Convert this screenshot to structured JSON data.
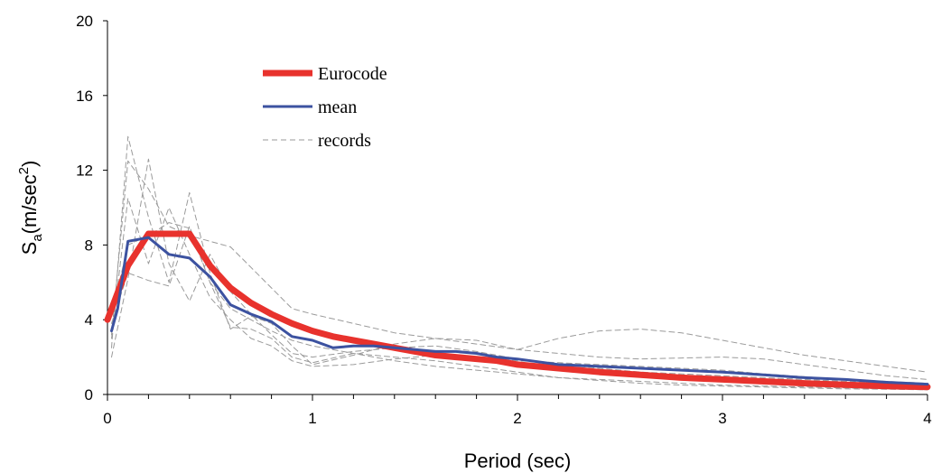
{
  "chart_data": {
    "type": "line",
    "title": "",
    "xlabel": "Period (sec)",
    "ylabel": {
      "main": "S",
      "sub": "a",
      "unit": "(m/sec",
      "sup": "2",
      "close": ")"
    },
    "xlim": [
      0,
      4
    ],
    "ylim": [
      0,
      20
    ],
    "xticks": [
      0,
      1,
      2,
      3,
      4
    ],
    "yticks": [
      0,
      4,
      8,
      12,
      16,
      20
    ],
    "grid": false,
    "legend_position": "top-left",
    "series": [
      {
        "name": "Eurocode",
        "color": "#e8322d",
        "style": "thick",
        "x": [
          0,
          0.1,
          0.2,
          0.3,
          0.4,
          0.5,
          0.6,
          0.7,
          0.8,
          0.9,
          1.0,
          1.1,
          1.2,
          1.3,
          1.4,
          1.5,
          1.6,
          1.7,
          1.8,
          1.9,
          2.0,
          2.2,
          2.4,
          2.6,
          2.8,
          3.0,
          3.2,
          3.4,
          3.6,
          3.8,
          4.0
        ],
        "y": [
          4.0,
          6.9,
          8.6,
          8.6,
          8.6,
          6.9,
          5.7,
          4.9,
          4.3,
          3.8,
          3.4,
          3.1,
          2.9,
          2.7,
          2.5,
          2.3,
          2.1,
          2.0,
          1.9,
          1.8,
          1.6,
          1.4,
          1.2,
          1.05,
          0.9,
          0.8,
          0.7,
          0.6,
          0.52,
          0.45,
          0.4
        ]
      },
      {
        "name": "mean",
        "color": "#3c52a0",
        "style": "solid",
        "x": [
          0.02,
          0.05,
          0.1,
          0.2,
          0.3,
          0.4,
          0.5,
          0.6,
          0.7,
          0.8,
          0.9,
          1.0,
          1.1,
          1.2,
          1.3,
          1.4,
          1.5,
          1.6,
          1.7,
          1.8,
          1.9,
          2.0,
          2.2,
          2.4,
          2.6,
          2.8,
          3.0,
          3.2,
          3.4,
          3.6,
          3.8,
          4.0
        ],
        "y": [
          3.4,
          4.6,
          8.2,
          8.4,
          7.5,
          7.3,
          6.3,
          4.8,
          4.3,
          3.9,
          3.1,
          2.9,
          2.5,
          2.6,
          2.6,
          2.5,
          2.4,
          2.3,
          2.3,
          2.2,
          2.0,
          1.9,
          1.6,
          1.5,
          1.4,
          1.3,
          1.2,
          1.05,
          0.9,
          0.8,
          0.65,
          0.55
        ]
      },
      {
        "name": "records",
        "color": "#9a9a9a",
        "style": "dashed",
        "legend": true,
        "x": [
          0.02,
          0.1,
          0.2,
          0.3,
          0.4,
          0.5,
          0.6,
          0.7,
          0.8,
          0.9,
          1.0,
          1.2,
          1.4,
          1.6,
          1.8,
          2.0,
          2.2,
          2.4,
          2.6,
          2.8,
          3.0,
          3.2,
          3.4,
          3.6,
          3.8,
          4.0
        ],
        "y": [
          2.5,
          13.8,
          9.5,
          6.0,
          10.8,
          6.5,
          3.5,
          4.2,
          3.8,
          2.6,
          1.6,
          2.1,
          2.7,
          3.0,
          2.9,
          2.4,
          3.0,
          3.4,
          3.5,
          3.3,
          2.9,
          2.5,
          2.1,
          1.8,
          1.5,
          1.2
        ]
      },
      {
        "name": "",
        "color": "#9a9a9a",
        "style": "dashed",
        "legend": false,
        "x": [
          0.02,
          0.1,
          0.2,
          0.3,
          0.4,
          0.5,
          0.6,
          0.7,
          0.8,
          0.9,
          1.0,
          1.2,
          1.4,
          1.6,
          1.8,
          2.0,
          2.2,
          2.4,
          2.6,
          2.8,
          3.0,
          3.2,
          3.4,
          3.6,
          3.8,
          4.0
        ],
        "y": [
          3.2,
          12.5,
          11.0,
          9.0,
          8.5,
          8.2,
          7.9,
          6.8,
          5.7,
          4.6,
          4.3,
          3.8,
          3.3,
          3.0,
          2.7,
          2.4,
          2.2,
          2.0,
          1.9,
          1.95,
          2.0,
          1.9,
          1.6,
          1.3,
          1.0,
          0.8
        ]
      },
      {
        "name": "",
        "color": "#9a9a9a",
        "style": "dashed",
        "legend": false,
        "x": [
          0.02,
          0.1,
          0.2,
          0.3,
          0.4,
          0.5,
          0.6,
          0.7,
          0.8,
          0.9,
          1.0,
          1.2,
          1.4,
          1.6,
          1.8,
          2.0,
          2.2,
          2.4,
          2.6,
          2.8,
          3.0,
          3.2,
          3.4,
          3.6,
          3.8,
          4.0
        ],
        "y": [
          2.0,
          6.2,
          12.6,
          7.0,
          5.0,
          7.5,
          5.5,
          4.3,
          3.2,
          2.2,
          2.0,
          2.3,
          2.5,
          2.6,
          2.3,
          1.9,
          1.6,
          1.4,
          1.2,
          1.1,
          1.0,
          0.9,
          0.8,
          0.7,
          0.6,
          0.5
        ]
      },
      {
        "name": "",
        "color": "#9a9a9a",
        "style": "dashed",
        "legend": false,
        "x": [
          0.02,
          0.1,
          0.2,
          0.3,
          0.4,
          0.5,
          0.6,
          0.7,
          0.8,
          0.9,
          1.0,
          1.2,
          1.4,
          1.6,
          1.8,
          2.0,
          2.2,
          2.4,
          2.6,
          2.8,
          3.0,
          3.2,
          3.4,
          3.6,
          3.8,
          4.0
        ],
        "y": [
          3.8,
          6.5,
          6.1,
          5.8,
          9.0,
          6.0,
          3.6,
          3.5,
          3.0,
          2.0,
          1.7,
          2.2,
          2.0,
          1.8,
          1.5,
          1.2,
          0.9,
          0.8,
          0.7,
          0.6,
          0.5,
          0.45,
          0.4,
          0.35,
          0.3,
          0.25
        ]
      },
      {
        "name": "",
        "color": "#9a9a9a",
        "style": "dashed",
        "legend": false,
        "x": [
          0.02,
          0.1,
          0.2,
          0.3,
          0.4,
          0.5,
          0.6,
          0.7,
          0.8,
          0.9,
          1.0,
          1.2,
          1.4,
          1.6,
          1.8,
          2.0,
          2.2,
          2.4,
          2.6,
          2.8,
          3.0,
          3.2,
          3.4,
          3.6,
          3.8,
          4.0
        ],
        "y": [
          4.2,
          8.0,
          8.5,
          9.2,
          8.9,
          6.0,
          4.6,
          4.0,
          3.4,
          2.9,
          2.6,
          2.2,
          1.8,
          1.5,
          1.3,
          1.1,
          0.9,
          0.75,
          0.6,
          0.5,
          0.45,
          0.4,
          0.35,
          0.3,
          0.28,
          0.25
        ]
      },
      {
        "name": "",
        "color": "#9a9a9a",
        "style": "dashed",
        "legend": false,
        "x": [
          0.02,
          0.1,
          0.2,
          0.3,
          0.4,
          0.5,
          0.6,
          0.7,
          0.8,
          0.9,
          1.0,
          1.2,
          1.4,
          1.6,
          1.8,
          2.0,
          2.2,
          2.4,
          2.6,
          2.8,
          3.0,
          3.2,
          3.4,
          3.6,
          3.8,
          4.0
        ],
        "y": [
          3.0,
          10.5,
          7.0,
          10.0,
          7.5,
          5.2,
          4.0,
          3.0,
          2.6,
          1.8,
          1.5,
          1.6,
          1.9,
          2.1,
          2.0,
          1.8,
          1.7,
          1.6,
          1.5,
          1.4,
          1.3,
          1.1,
          0.95,
          0.8,
          0.7,
          0.6
        ]
      }
    ]
  }
}
